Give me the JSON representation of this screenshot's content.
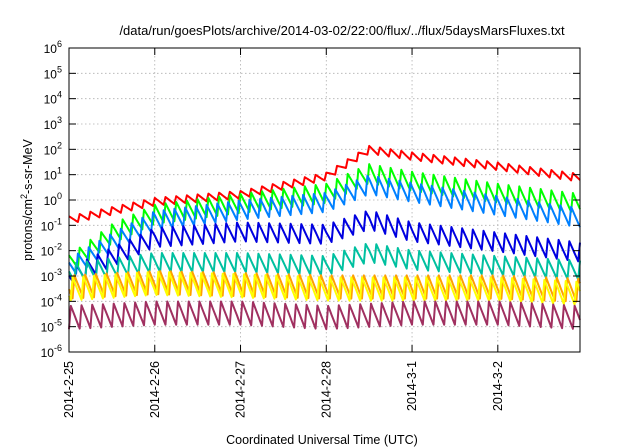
{
  "chart_data": {
    "type": "line",
    "title": "/data/run/goesPlots/archive/2014-03-02/22:00/flux/../flux/5daysMarsFluxes.txt",
    "xlabel": "Coordinated Universal Time (UTC)",
    "ylabel": "protons/cm2-s-sr-MeV",
    "ylabel_parts": {
      "base": "protons/cm",
      "sup": "2",
      "rest": "-s-sr-MeV"
    },
    "xlim": [
      "2014-02-25T00:00",
      "2014-03-02T23:00"
    ],
    "ylim": [
      1e-06,
      1000000.0
    ],
    "yscale": "log",
    "x_ticks": [
      "2014-2-25",
      "2014-2-26",
      "2014-2-27",
      "2014-2-28",
      "2014-3-1",
      "2014-3-2"
    ],
    "y_ticks": [
      {
        "base": "10",
        "exp": "6"
      },
      {
        "base": "10",
        "exp": "5"
      },
      {
        "base": "10",
        "exp": "4"
      },
      {
        "base": "10",
        "exp": "3"
      },
      {
        "base": "10",
        "exp": "2"
      },
      {
        "base": "10",
        "exp": "1"
      },
      {
        "base": "10",
        "exp": "0"
      },
      {
        "base": "10",
        "exp": "-1"
      },
      {
        "base": "10",
        "exp": "-2"
      },
      {
        "base": "10",
        "exp": "-3"
      },
      {
        "base": "10",
        "exp": "-4"
      },
      {
        "base": "10",
        "exp": "-5"
      },
      {
        "base": "10",
        "exp": "-6"
      }
    ],
    "grid": true,
    "legend": "none",
    "series": [
      {
        "color": "#ff0000",
        "x": [
          "2014-02-25T00:00",
          "2014-02-26T00:00",
          "2014-02-27T00:00",
          "2014-02-28T00:00",
          "2014-02-28T12:00",
          "2014-03-01T00:00",
          "2014-03-02T00:00",
          "2014-03-02T23:00"
        ],
        "values": [
          0.15,
          0.8,
          1.5,
          8,
          90,
          50,
          20,
          7
        ]
      },
      {
        "color": "#00ff00",
        "x": [
          "2014-02-25T00:00",
          "2014-02-25T12:00",
          "2014-02-26T00:00",
          "2014-02-27T00:00",
          "2014-02-28T00:00",
          "2014-02-28T12:00",
          "2014-03-01T00:00",
          "2014-03-02T00:00",
          "2014-03-02T23:00"
        ],
        "values": [
          0.003,
          0.05,
          0.3,
          0.8,
          2,
          12,
          6,
          2,
          0.8
        ]
      },
      {
        "color": "#0080ff",
        "x": [
          "2014-02-25T00:00",
          "2014-02-25T12:00",
          "2014-02-26T00:00",
          "2014-02-27T00:00",
          "2014-02-28T00:00",
          "2014-02-28T12:00",
          "2014-03-01T00:00",
          "2014-03-02T00:00",
          "2014-03-02T23:00"
        ],
        "values": [
          0.002,
          0.02,
          0.15,
          0.4,
          0.8,
          4,
          2,
          0.6,
          0.2
        ]
      },
      {
        "color": "#0000e0",
        "x": [
          "2014-02-25T00:00",
          "2014-02-25T12:00",
          "2014-02-26T00:00",
          "2014-02-27T00:00",
          "2014-02-28T00:00",
          "2014-02-28T12:00",
          "2014-03-01T00:00",
          "2014-03-02T00:00",
          "2014-03-02T23:00"
        ],
        "values": [
          0.0008,
          0.005,
          0.03,
          0.05,
          0.04,
          0.15,
          0.05,
          0.02,
          0.008
        ]
      },
      {
        "color": "#00c0a0",
        "x": [
          "2014-02-25T00:00",
          "2014-02-26T00:00",
          "2014-02-27T00:00",
          "2014-02-28T00:00",
          "2014-02-28T12:00",
          "2014-03-01T00:00",
          "2014-03-02T00:00",
          "2014-03-02T23:00"
        ],
        "values": [
          0.0015,
          0.004,
          0.004,
          0.003,
          0.01,
          0.005,
          0.003,
          0.002
        ]
      },
      {
        "color": "#ffa000",
        "x": [
          "2014-02-25T00:00",
          "2014-02-26T00:00",
          "2014-02-27T00:00",
          "2014-02-28T00:00",
          "2014-03-01T00:00",
          "2014-03-02T00:00",
          "2014-03-02T23:00"
        ],
        "values": [
          0.0004,
          0.0006,
          0.0005,
          0.0004,
          0.0004,
          0.0004,
          0.0003
        ]
      },
      {
        "color": "#ffff00",
        "x": [
          "2014-02-25T00:00",
          "2014-02-26T00:00",
          "2014-02-27T00:00",
          "2014-02-28T00:00",
          "2014-03-01T00:00",
          "2014-03-02T00:00",
          "2014-03-02T23:00"
        ],
        "values": [
          0.0003,
          0.0005,
          0.0004,
          0.0003,
          0.0003,
          0.0003,
          0.0002
        ]
      },
      {
        "color": "#a03060",
        "x": [
          "2014-02-25T00:00",
          "2014-02-26T00:00",
          "2014-02-27T00:00",
          "2014-02-28T00:00",
          "2014-03-01T00:00",
          "2014-03-02T00:00",
          "2014-03-02T23:00"
        ],
        "values": [
          2e-05,
          3e-05,
          3e-05,
          2e-05,
          3e-05,
          3e-05,
          2e-05
        ]
      }
    ]
  }
}
